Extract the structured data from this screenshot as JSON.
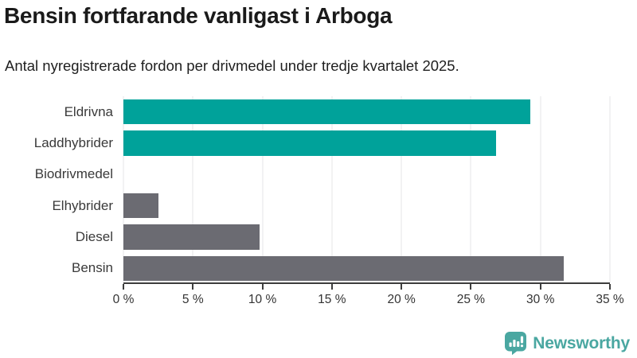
{
  "header": {
    "title": "Bensin fortfarande vanligast i Arboga",
    "subtitle": "Antal nyregistrerade fordon per drivmedel under tredje kvartalet 2025."
  },
  "chart_data": {
    "type": "bar",
    "orientation": "horizontal",
    "title": "Bensin fortfarande vanligast i Arboga",
    "subtitle": "Antal nyregistrerade fordon per drivmedel under tredje kvartalet 2025.",
    "categories": [
      "Eldrivna",
      "Laddhybrider",
      "Biodrivmedel",
      "Elhybrider",
      "Diesel",
      "Bensin"
    ],
    "values": [
      29.3,
      26.8,
      0,
      2.5,
      9.8,
      31.7
    ],
    "unit": "%",
    "bar_colors": [
      "#00a29a",
      "#00a29a",
      "#00a29a",
      "#6b6b72",
      "#6b6b72",
      "#6b6b72"
    ],
    "xlabel": "",
    "ylabel": "",
    "xlim": [
      0,
      35
    ],
    "x_ticks": [
      0,
      5,
      10,
      15,
      20,
      25,
      30,
      35
    ],
    "x_tick_labels": [
      "0 %",
      "5 %",
      "10 %",
      "15 %",
      "20 %",
      "25 %",
      "30 %",
      "35 %"
    ],
    "grid": "vertical-only",
    "legend": "none"
  },
  "colors": {
    "teal": "#00a29a",
    "gray": "#6b6b72",
    "gridline": "#e4e6e7",
    "axis": "#3d3d3d",
    "text": "#333333",
    "brand_teal": "#4aa7a1"
  },
  "footer": {
    "brand": "Newsworthy",
    "logo_icon": "bar-chart-speech-bubble-icon"
  }
}
